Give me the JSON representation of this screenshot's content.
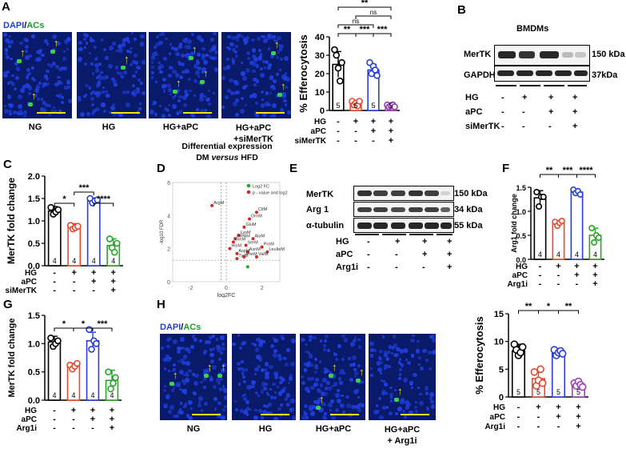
{
  "colors": {
    "ng": "#000000",
    "hg": "#e8492e",
    "aPC": "#2a3fd8",
    "siMerTK": "#9a3fb5",
    "arg1i": "#2aa52a",
    "dapi_blue": "#1f3fe0",
    "acs_green": "#37d64a",
    "scale_yellow": "#f2e600"
  },
  "panel_letters": {
    "A": "A",
    "B": "B",
    "C": "C",
    "D": "D",
    "E": "E",
    "F": "F",
    "G": "G",
    "H": "H"
  },
  "panelA": {
    "stain_dapi": "DAPI",
    "stain_sep": "/",
    "stain_acs": "ACs",
    "images": [
      {
        "label": "NG"
      },
      {
        "label": "HG"
      },
      {
        "label": "HG+aPC"
      },
      {
        "label_line1": "HG+aPC",
        "label_line2": "+siMerTK"
      }
    ]
  },
  "panelB": {
    "title": "BMDMs",
    "rows": [
      {
        "name": "MerTK",
        "size": "150 kDa"
      },
      {
        "name": "GAPDH",
        "size": "37kDa"
      }
    ],
    "treatments": [
      {
        "name": "HG",
        "signs": [
          "-",
          "+",
          "+",
          "+"
        ]
      },
      {
        "name": "aPC",
        "signs": [
          "-",
          "-",
          "+",
          "+"
        ]
      },
      {
        "name": "siMerTK",
        "signs": [
          "-",
          "-",
          "-",
          "+"
        ]
      }
    ]
  },
  "panelE": {
    "rows": [
      {
        "name": "MerTK",
        "size": "150 kDa"
      },
      {
        "name": "Arg 1",
        "size": "34 kDa"
      },
      {
        "name": "α-tubulin",
        "size": "55 kDa"
      }
    ],
    "treatments": [
      {
        "name": "HG",
        "signs": [
          "-",
          "+",
          "+",
          "+"
        ]
      },
      {
        "name": "aPC",
        "signs": [
          "-",
          "-",
          "+",
          "+"
        ]
      },
      {
        "name": "Arg1i",
        "signs": [
          "-",
          "-",
          "-",
          "+"
        ]
      }
    ]
  },
  "panelH": {
    "stain_dapi": "DAPI",
    "stain_sep": "/",
    "stain_acs": "ACs",
    "images": [
      {
        "label": "NG"
      },
      {
        "label": "HG"
      },
      {
        "label": "HG+aPC"
      },
      {
        "label_line1": "HG+aPC",
        "label_line2": "+ Arg1i"
      }
    ]
  },
  "chart_data": [
    {
      "id": "A_efferocytosis",
      "type": "bar",
      "ylabel": "% Efferocytosis",
      "ylim": [
        0,
        40
      ],
      "yticks": [
        0,
        10,
        20,
        30,
        40
      ],
      "categories": [
        "NG",
        "HG",
        "HG+aPC",
        "HG+aPC+siMerTK"
      ],
      "values": [
        25,
        4,
        22,
        2.5
      ],
      "errors": [
        7,
        1.5,
        3,
        1
      ],
      "n": [
        "5",
        "5",
        "5",
        "5"
      ],
      "colors": [
        "#000000",
        "#e8492e",
        "#2a3fd8",
        "#9a3fb5"
      ],
      "points": [
        [
          33,
          30,
          23,
          16,
          26
        ],
        [
          5,
          3,
          4,
          2.5,
          5
        ],
        [
          26,
          20,
          24,
          22,
          19
        ],
        [
          3,
          2,
          2.5,
          3,
          2
        ]
      ],
      "significance": [
        {
          "from": 0,
          "to": 1,
          "label": "**",
          "level": 0
        },
        {
          "from": 1,
          "to": 2,
          "label": "***",
          "level": 0
        },
        {
          "from": 2,
          "to": 3,
          "label": "***",
          "level": 0
        },
        {
          "from": 0,
          "to": 2,
          "label": "ns",
          "level": 1
        },
        {
          "from": 1,
          "to": 3,
          "label": "ns",
          "level": 2
        },
        {
          "from": 0,
          "to": 3,
          "label": "**",
          "level": 3
        }
      ],
      "treatments": [
        {
          "name": "HG",
          "signs": [
            "-",
            "+",
            "+",
            "+"
          ]
        },
        {
          "name": "aPC",
          "signs": [
            "-",
            "-",
            "+",
            "+"
          ]
        },
        {
          "name": "siMerTK",
          "signs": [
            "-",
            "-",
            "-",
            "+"
          ]
        }
      ]
    },
    {
      "id": "C_mertk",
      "type": "bar",
      "ylabel": "MerTK fold change",
      "ylim": [
        0,
        2
      ],
      "yticks": [
        0,
        0.5,
        1.0,
        1.5,
        2.0
      ],
      "categories": [
        "NG",
        "HG",
        "HG+aPC",
        "HG+aPC+siMerTK"
      ],
      "values": [
        1.22,
        0.86,
        1.45,
        0.45
      ],
      "errors": [
        0.1,
        0.08,
        0.06,
        0.15
      ],
      "n": [
        "4",
        "4",
        "4",
        "4"
      ],
      "colors": [
        "#000000",
        "#e8492e",
        "#2a3fd8",
        "#2aa52a"
      ],
      "points": [
        [
          1.3,
          1.15,
          1.2,
          1.25
        ],
        [
          0.9,
          0.82,
          0.85,
          0.88
        ],
        [
          1.5,
          1.4,
          1.45,
          1.47
        ],
        [
          0.6,
          0.4,
          0.3,
          0.5
        ]
      ],
      "significance": [
        {
          "from": 0,
          "to": 1,
          "label": "*",
          "level": 0
        },
        {
          "from": 2,
          "to": 3,
          "label": "****",
          "level": 0
        },
        {
          "from": 1,
          "to": 2,
          "label": "***",
          "level": 1
        }
      ],
      "treatments": [
        {
          "name": "HG",
          "signs": [
            "-",
            "+",
            "+",
            "+"
          ]
        },
        {
          "name": "aPC",
          "signs": [
            "-",
            "-",
            "+",
            "+"
          ]
        },
        {
          "name": "siMerTK",
          "signs": [
            "-",
            "-",
            "-",
            "+"
          ]
        }
      ]
    },
    {
      "id": "D_volcano",
      "type": "scatter",
      "title": "Differential expression",
      "subtitle_a": "DM",
      "subtitle_b": "versus",
      "subtitle_c": "HFD",
      "xlabel": "log2FC",
      "ylabel": "-log10 FDR",
      "xlim": [
        -3,
        3
      ],
      "ylim": [
        0,
        6
      ],
      "xticks": [
        -2,
        0,
        2
      ],
      "yticks": [
        0,
        2,
        4,
        6
      ],
      "threshold_y": 1.3,
      "legend": [
        {
          "label": "Log2 FC",
          "color": "#2aa52a"
        },
        {
          "label": "p - value and log2 FC",
          "color": "#d62828"
        }
      ],
      "points": [
        {
          "label": "ArgM",
          "x": -0.8,
          "y": 4.6
        },
        {
          "label": "CitM",
          "x": 1.7,
          "y": 4.2
        },
        {
          "label": "OrnM",
          "x": 1.3,
          "y": 3.8
        },
        {
          "label": "GluM",
          "x": 1.0,
          "y": 3.3
        },
        {
          "label": "LysM",
          "x": 0.7,
          "y": 2.8
        },
        {
          "label": "AlaM",
          "x": 1.5,
          "y": 2.6
        },
        {
          "label": "PIPAM",
          "x": 0.5,
          "y": 2.6
        },
        {
          "label": "GlnM",
          "x": 0.4,
          "y": 2.4
        },
        {
          "label": "SerM",
          "x": 1.1,
          "y": 2.2
        },
        {
          "label": "ProM",
          "x": 2.0,
          "y": 2.1
        },
        {
          "label": "HisM",
          "x": 0.2,
          "y": 2.0
        },
        {
          "label": "AsnM",
          "x": 1.2,
          "y": 1.8
        },
        {
          "label": "LeuIleM",
          "x": 2.3,
          "y": 1.8
        },
        {
          "label": "AspM",
          "x": 0.6,
          "y": 1.7
        },
        {
          "label": "PheM",
          "x": 1.0,
          "y": 1.5
        },
        {
          "label": "ValM",
          "x": 1.7,
          "y": 1.5
        },
        {
          "label": "TyrM",
          "x": 0.6,
          "y": 1.4
        }
      ],
      "green_points": [
        {
          "x": 1.2,
          "y": 0.9
        }
      ]
    },
    {
      "id": "F_arg1",
      "type": "bar",
      "ylabel": "Arg1 fold change",
      "ylim": [
        0,
        1.5
      ],
      "yticks": [
        0,
        0.5,
        1.0,
        1.5
      ],
      "categories": [
        "NG",
        "HG",
        "HG+aPC",
        "HG+aPC+Arg1i"
      ],
      "values": [
        1.28,
        0.75,
        1.4,
        0.5
      ],
      "errors": [
        0.15,
        0.05,
        0.05,
        0.15
      ],
      "n": [
        "4",
        "4",
        "4",
        "4"
      ],
      "colors": [
        "#000000",
        "#e8492e",
        "#2a3fd8",
        "#2aa52a"
      ],
      "points": [
        [
          1.4,
          1.1,
          1.3,
          1.3
        ],
        [
          0.78,
          0.7,
          0.76,
          0.8
        ],
        [
          1.45,
          1.38,
          1.42,
          1.35
        ],
        [
          0.65,
          0.35,
          0.5,
          0.45
        ]
      ],
      "significance": [
        {
          "from": 0,
          "to": 1,
          "label": "**",
          "level": 0
        },
        {
          "from": 1,
          "to": 2,
          "label": "***",
          "level": 0
        },
        {
          "from": 2,
          "to": 3,
          "label": "****",
          "level": 0
        }
      ],
      "treatments": [
        {
          "name": "HG",
          "signs": [
            "-",
            "+",
            "+",
            "+"
          ]
        },
        {
          "name": "aPC",
          "signs": [
            "-",
            "-",
            "+",
            "+"
          ]
        },
        {
          "name": "Arg1i",
          "signs": [
            "-",
            "-",
            "-",
            "+"
          ]
        }
      ]
    },
    {
      "id": "G_mertk",
      "type": "bar",
      "ylabel": "MerTK fold change",
      "ylim": [
        0,
        1.5
      ],
      "yticks": [
        0,
        0.5,
        1.0,
        1.5
      ],
      "categories": [
        "NG",
        "HG",
        "HG+aPC",
        "HG+aPC+Arg1i"
      ],
      "values": [
        1.03,
        0.6,
        1.05,
        0.35
      ],
      "errors": [
        0.1,
        0.05,
        0.15,
        0.18
      ],
      "n": [
        "4",
        "4",
        "4",
        "4"
      ],
      "colors": [
        "#000000",
        "#e8492e",
        "#2a3fd8",
        "#2aa52a"
      ],
      "points": [
        [
          1.1,
          0.95,
          1.0,
          1.05
        ],
        [
          0.62,
          0.55,
          0.6,
          0.65
        ],
        [
          1.25,
          0.9,
          1.05,
          1.0
        ],
        [
          0.5,
          0.2,
          0.3,
          0.4
        ]
      ],
      "significance": [
        {
          "from": 0,
          "to": 1,
          "label": "*",
          "level": 0
        },
        {
          "from": 1,
          "to": 2,
          "label": "*",
          "level": 0
        },
        {
          "from": 2,
          "to": 3,
          "label": "***",
          "level": 0
        }
      ],
      "treatments": [
        {
          "name": "HG",
          "signs": [
            "-",
            "+",
            "+",
            "+"
          ]
        },
        {
          "name": "aPC",
          "signs": [
            "-",
            "-",
            "+",
            "+"
          ]
        },
        {
          "name": "Arg1i",
          "signs": [
            "-",
            "-",
            "-",
            "+"
          ]
        }
      ]
    },
    {
      "id": "H_efferocytosis",
      "type": "bar",
      "ylabel": "% Efferocytosis",
      "ylim": [
        0,
        15
      ],
      "yticks": [
        0,
        5,
        10,
        15
      ],
      "categories": [
        "NG",
        "HG",
        "HG+aPC",
        "HG+aPC+Arg1i"
      ],
      "values": [
        8.3,
        3.3,
        8.0,
        2.3
      ],
      "errors": [
        1.2,
        1.6,
        0.6,
        0.5
      ],
      "n": [
        "5",
        "5",
        "5",
        "5"
      ],
      "colors": [
        "#000000",
        "#e8492e",
        "#2a3fd8",
        "#9a3fb5"
      ],
      "points": [
        [
          9.5,
          8.5,
          7.5,
          8.0,
          9.0
        ],
        [
          4.5,
          2.0,
          3.0,
          5.0,
          2.5
        ],
        [
          8.5,
          7.5,
          8.0,
          8.3,
          7.8
        ],
        [
          2.5,
          2.0,
          2.8,
          2.2,
          1.8
        ]
      ],
      "significance": [
        {
          "from": 0,
          "to": 1,
          "label": "**",
          "level": 0
        },
        {
          "from": 1,
          "to": 2,
          "label": "*",
          "level": 0
        },
        {
          "from": 2,
          "to": 3,
          "label": "**",
          "level": 0
        }
      ],
      "treatments": [
        {
          "name": "HG",
          "signs": [
            "-",
            "+",
            "+",
            "+"
          ]
        },
        {
          "name": "aPC",
          "signs": [
            "-",
            "-",
            "+",
            "+"
          ]
        },
        {
          "name": "Arg1i",
          "signs": [
            "-",
            "-",
            "-",
            "+"
          ]
        }
      ]
    }
  ]
}
